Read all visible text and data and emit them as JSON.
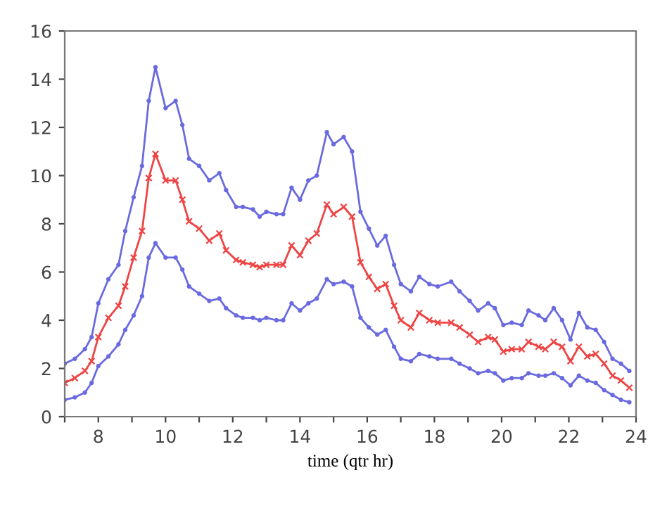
{
  "chart_data": {
    "type": "line",
    "xlabel": "time (qtr hr)",
    "x": [
      7.0,
      7.3,
      7.6,
      7.8,
      8.0,
      8.3,
      8.6,
      8.8,
      9.05,
      9.3,
      9.5,
      9.7,
      10.0,
      10.3,
      10.5,
      10.7,
      11.0,
      11.3,
      11.6,
      11.8,
      12.1,
      12.3,
      12.6,
      12.8,
      13.0,
      13.3,
      13.5,
      13.75,
      14.0,
      14.25,
      14.5,
      14.8,
      15.0,
      15.3,
      15.55,
      15.8,
      16.05,
      16.3,
      16.55,
      16.8,
      17.0,
      17.3,
      17.55,
      17.85,
      18.1,
      18.5,
      18.75,
      19.05,
      19.3,
      19.6,
      19.8,
      20.05,
      20.3,
      20.6,
      20.8,
      21.1,
      21.3,
      21.55,
      21.8,
      22.05,
      22.3,
      22.55,
      22.8,
      23.05,
      23.3,
      23.55,
      23.8
    ],
    "series": [
      {
        "color": "#6a6ae0",
        "marker": "circle",
        "values": [
          2.2,
          2.4,
          2.8,
          3.3,
          4.7,
          5.7,
          6.3,
          7.7,
          9.1,
          10.4,
          13.1,
          14.5,
          12.8,
          13.1,
          12.1,
          10.7,
          10.4,
          9.8,
          10.1,
          9.4,
          8.7,
          8.7,
          8.6,
          8.3,
          8.5,
          8.4,
          8.4,
          9.5,
          9.0,
          9.8,
          10.0,
          11.8,
          11.3,
          11.6,
          11.0,
          8.5,
          7.8,
          7.1,
          7.5,
          6.3,
          5.5,
          5.2,
          5.8,
          5.5,
          5.4,
          5.6,
          5.2,
          4.8,
          4.4,
          4.7,
          4.5,
          3.8,
          3.9,
          3.8,
          4.4,
          4.2,
          4.0,
          4.5,
          4.0,
          3.2,
          4.3,
          3.7,
          3.6,
          3.1,
          2.4,
          2.2,
          1.9
        ]
      },
      {
        "color": "#ee4444",
        "marker": "cross",
        "values": [
          1.4,
          1.6,
          1.9,
          2.3,
          3.3,
          4.1,
          4.6,
          5.4,
          6.6,
          7.7,
          9.9,
          10.9,
          9.8,
          9.8,
          9.0,
          8.1,
          7.8,
          7.3,
          7.6,
          6.9,
          6.5,
          6.4,
          6.3,
          6.2,
          6.3,
          6.3,
          6.3,
          7.1,
          6.7,
          7.3,
          7.6,
          8.8,
          8.4,
          8.7,
          8.3,
          6.4,
          5.8,
          5.3,
          5.5,
          4.6,
          4.0,
          3.7,
          4.3,
          4.0,
          3.9,
          3.9,
          3.7,
          3.4,
          3.1,
          3.3,
          3.2,
          2.7,
          2.8,
          2.8,
          3.1,
          2.9,
          2.8,
          3.1,
          2.9,
          2.3,
          2.9,
          2.5,
          2.6,
          2.2,
          1.7,
          1.5,
          1.2
        ]
      },
      {
        "color": "#6a6ae0",
        "marker": "circle",
        "values": [
          0.7,
          0.8,
          1.0,
          1.4,
          2.1,
          2.5,
          3.0,
          3.6,
          4.2,
          5.0,
          6.6,
          7.2,
          6.6,
          6.6,
          6.1,
          5.4,
          5.1,
          4.8,
          4.9,
          4.5,
          4.2,
          4.1,
          4.1,
          4.0,
          4.1,
          4.0,
          4.0,
          4.7,
          4.4,
          4.7,
          4.9,
          5.7,
          5.5,
          5.6,
          5.4,
          4.1,
          3.7,
          3.4,
          3.6,
          2.9,
          2.4,
          2.3,
          2.6,
          2.5,
          2.4,
          2.4,
          2.2,
          2.0,
          1.8,
          1.9,
          1.8,
          1.5,
          1.6,
          1.6,
          1.8,
          1.7,
          1.7,
          1.8,
          1.6,
          1.3,
          1.7,
          1.5,
          1.4,
          1.1,
          0.9,
          0.7,
          0.6
        ]
      }
    ],
    "xlim": [
      7,
      24
    ],
    "ylim": [
      0,
      16
    ],
    "xticks": [
      {
        "value": 7,
        "label": null
      },
      8,
      {
        "value": 9,
        "label": null
      },
      10,
      {
        "value": 11,
        "label": null
      },
      12,
      {
        "value": 13,
        "label": null
      },
      14,
      {
        "value": 15,
        "label": null
      },
      16,
      {
        "value": 17,
        "label": null
      },
      18,
      {
        "value": 19,
        "label": null
      },
      20,
      {
        "value": 21,
        "label": null
      },
      22,
      {
        "value": 23,
        "label": null
      },
      24
    ],
    "yticks": [
      0,
      2,
      4,
      6,
      8,
      10,
      12,
      14,
      16
    ],
    "grid": false,
    "legend": false,
    "line_style": "solid"
  }
}
